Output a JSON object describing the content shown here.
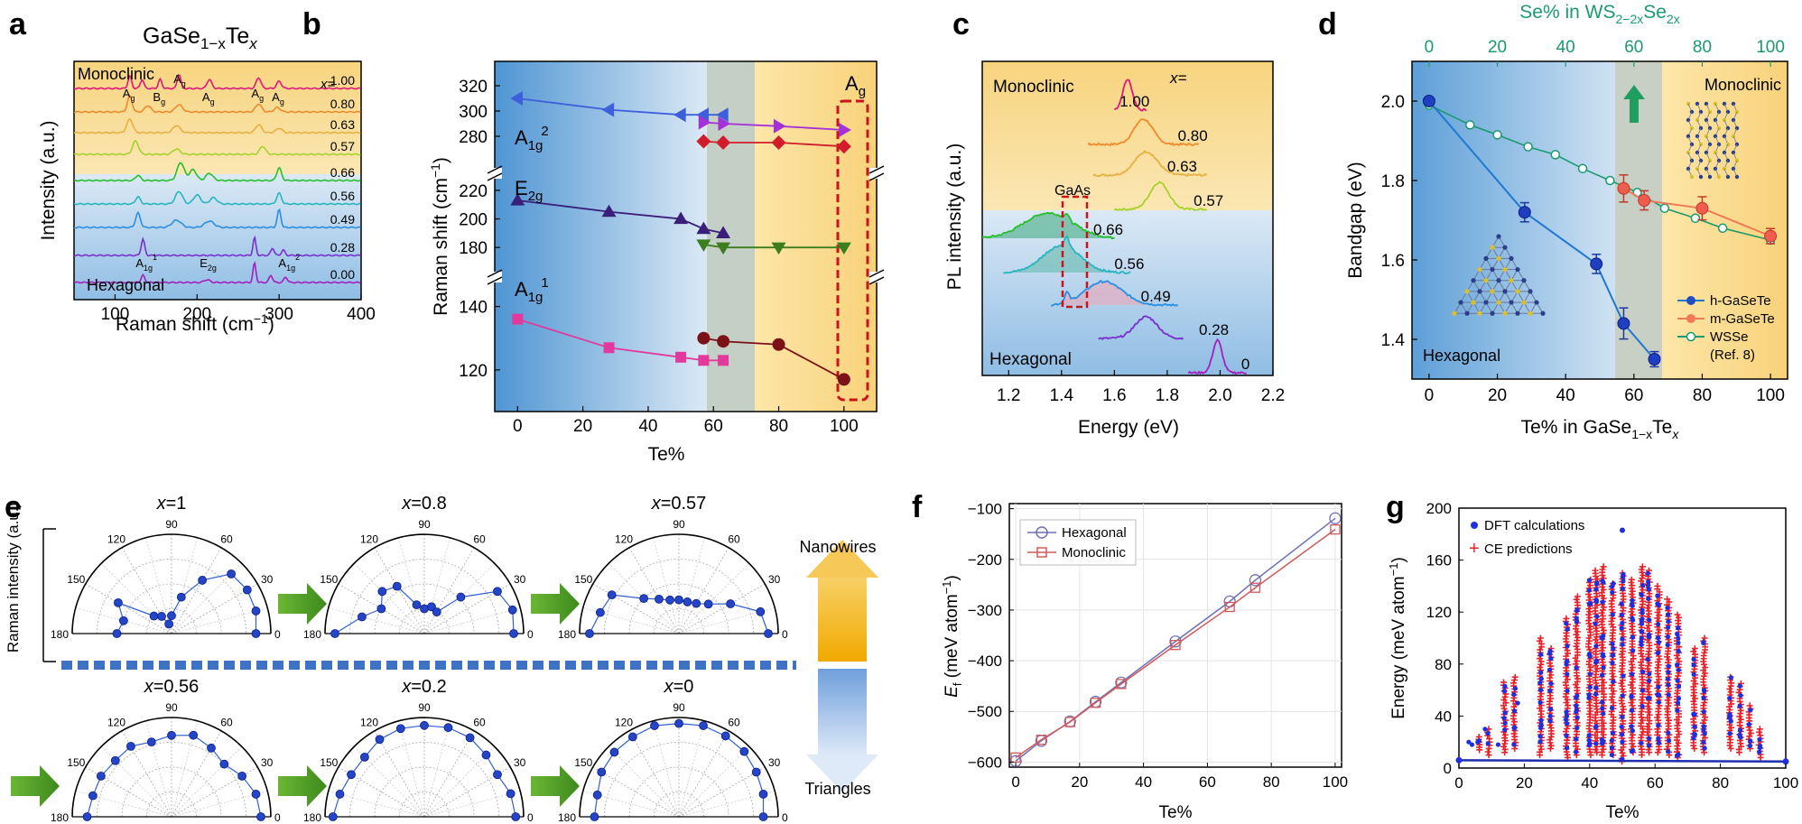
{
  "panels": {
    "a": "a",
    "b": "b",
    "c": "c",
    "d": "d",
    "e": "e",
    "f": "f",
    "g": "g"
  },
  "colors": {
    "yellow": "#fbe4a2",
    "blue": "#7fb2de",
    "grey": "#c8d0c8",
    "teal": "#1a9a6e"
  },
  "chart_data": [
    {
      "id": "a",
      "type": "line",
      "title": "GaSe1−xTex",
      "title_parts": {
        "base": "GaSe",
        "sub": "1−x",
        "mid": "Te",
        "sub2": "x"
      },
      "xlabel": "Raman shift (cm−1)",
      "ylabel": "Intensity (a.u.)",
      "xlim": [
        50,
        400
      ],
      "xticks": [
        "100",
        "200",
        "300",
        "400"
      ],
      "legend_header": "x=",
      "top_label": "Monoclinic",
      "bottom_label": "Hexagonal",
      "series": [
        {
          "name": "1.00",
          "color": "#e0177a"
        },
        {
          "name": "0.80",
          "color": "#ef8a2c"
        },
        {
          "name": "0.63",
          "color": "#e6b042"
        },
        {
          "name": "0.57",
          "color": "#a6d32b"
        },
        {
          "name": "0.66",
          "color": "#28bf2c"
        },
        {
          "name": "0.56",
          "color": "#27b5c0"
        },
        {
          "name": "0.49",
          "color": "#2a8fe0"
        },
        {
          "name": "0.28",
          "color": "#7a2fd0"
        },
        {
          "name": "0.00",
          "color": "#a41fbf"
        }
      ],
      "peak_labels": [
        {
          "base": "A",
          "sub": "g",
          "x": 118
        },
        {
          "base": "B",
          "sub": "g",
          "x": 155
        },
        {
          "base": "A",
          "sub": "g",
          "x": 180
        },
        {
          "base": "A",
          "sub": "g",
          "x": 215
        },
        {
          "base": "A",
          "sub": "g",
          "x": 275
        },
        {
          "base": "A",
          "sub": "g",
          "x": 300
        }
      ],
      "hex_peak_labels": [
        {
          "base": "A",
          "sub": "1g",
          "sup": "1",
          "x": 134
        },
        {
          "base": "E",
          "sub": "2g",
          "x": 212
        },
        {
          "base": "A",
          "sub": "1g",
          "sup": "2",
          "x": 308
        }
      ]
    },
    {
      "id": "b",
      "type": "line",
      "xlabel": "Te%",
      "ylabel": "Raman shift (cm−1)",
      "xlim": [
        -7,
        110
      ],
      "xticks": [
        "0",
        "20",
        "40",
        "60",
        "80",
        "100"
      ],
      "yticks_top": [
        "320",
        "300",
        "280"
      ],
      "yticks_mid": [
        "220",
        "200",
        "180"
      ],
      "yticks_bot": [
        "140",
        "120"
      ],
      "mode_labels": {
        "A1g2": {
          "base": "A",
          "sub": "1g",
          "sup": "2"
        },
        "E2g": {
          "base": "E",
          "sub": "2g"
        },
        "A1g1": {
          "base": "A",
          "sub": "1g",
          "sup": "1"
        },
        "Ag": {
          "base": "A",
          "sub": "g"
        }
      },
      "series": [
        {
          "name": "A1g2 hex",
          "color": "#3d5fd9",
          "marker": "tri-left",
          "x": [
            0,
            28,
            50,
            57,
            63
          ],
          "y": [
            310,
            301,
            297,
            297,
            297
          ]
        },
        {
          "name": "A1g2 mono",
          "color": "#a430d8",
          "marker": "tri-right",
          "x": [
            57,
            63,
            80,
            100
          ],
          "y": [
            291,
            290,
            288,
            285
          ]
        },
        {
          "name": "Ag mono",
          "color": "#d11d2b",
          "marker": "diamond",
          "x": [
            57,
            63,
            80,
            100
          ],
          "y": [
            276,
            275,
            275,
            272
          ]
        },
        {
          "name": "E2g hex",
          "color": "#3a1f7a",
          "marker": "tri-up",
          "x": [
            0,
            28,
            50,
            57,
            63
          ],
          "y": [
            213,
            205,
            200,
            193,
            190
          ]
        },
        {
          "name": "E2g mono",
          "color": "#3d7d1e",
          "marker": "tri-down",
          "x": [
            57,
            63,
            80,
            100
          ],
          "y": [
            182,
            180,
            180,
            180
          ]
        },
        {
          "name": "A1g1 hex",
          "color": "#e23a9c",
          "marker": "square",
          "x": [
            0,
            28,
            50,
            57,
            63
          ],
          "y": [
            136,
            127,
            124,
            123,
            123
          ]
        },
        {
          "name": "A1g1 mono",
          "color": "#7a1218",
          "marker": "circle",
          "x": [
            57,
            63,
            80,
            100
          ],
          "y": [
            130,
            129,
            128,
            117
          ]
        }
      ]
    },
    {
      "id": "c",
      "type": "line",
      "xlabel": "Energy (eV)",
      "ylabel": "PL intensity (a.u.)",
      "xlim": [
        1.1,
        2.2
      ],
      "xticks": [
        "1.2",
        "1.4",
        "1.6",
        "1.8",
        "2.0",
        "2.2"
      ],
      "top_label": "Monoclinic",
      "bottom_label": "Hexagonal",
      "legend_header": "x=",
      "gaas_label": "GaAs",
      "series": [
        {
          "name": "1.00",
          "color": "#e0177a"
        },
        {
          "name": "0.80",
          "color": "#ef8a2c"
        },
        {
          "name": "0.63",
          "color": "#e6b042"
        },
        {
          "name": "0.57",
          "color": "#a6d32b"
        },
        {
          "name": "0.66",
          "color": "#28bf2c"
        },
        {
          "name": "0.56",
          "color": "#27b5c0"
        },
        {
          "name": "0.49",
          "color": "#2a8fe0"
        },
        {
          "name": "0.28",
          "color": "#7a2fd0"
        },
        {
          "name": "0",
          "color": "#a41fbf"
        }
      ]
    },
    {
      "id": "d",
      "type": "line",
      "xlabel": "Te% in GaSe1−xTex",
      "ylabel": "Bandgap (eV)",
      "xlabel_parts": {
        "a": "Te% in GaSe",
        "sub": "1−x",
        "b": "Te",
        "sub2": "x"
      },
      "top_xlabel": "Se% in WS2−2xSe2x",
      "top_xlabel_parts": {
        "a": "Se% in WS",
        "sub": "2−2x",
        "b": "Se",
        "sub2": "2x"
      },
      "xlim": [
        -5,
        105
      ],
      "ylim": [
        1.3,
        2.1
      ],
      "xticks": [
        "0",
        "20",
        "40",
        "60",
        "80",
        "100"
      ],
      "yticks": [
        "1.4",
        "1.6",
        "1.8",
        "2.0"
      ],
      "top_xticks": [
        "0",
        "20",
        "40",
        "60",
        "80",
        "100"
      ],
      "top_label": "Monoclinic",
      "bottom_label": "Hexagonal",
      "legend": [
        "h-GaSeTe",
        "m-GaSeTe",
        "WSSe"
      ],
      "legend_note": "(Ref. 8)",
      "series": [
        {
          "name": "h-GaSeTe",
          "color": "#1f78d1",
          "x": [
            0,
            28,
            49,
            57,
            66
          ],
          "y": [
            2.0,
            1.72,
            1.59,
            1.44,
            1.35
          ],
          "err": [
            0,
            0.015,
            0.015,
            0.03,
            0.01
          ]
        },
        {
          "name": "m-GaSeTe",
          "color": "#f07a57",
          "x": [
            57,
            63,
            80,
            100
          ],
          "y": [
            1.78,
            1.75,
            1.73,
            1.66
          ],
          "err": [
            0.025,
            0.015,
            0.02,
            0.01
          ]
        },
        {
          "name": "WSSe",
          "color": "#1a9a6e",
          "x": [
            0,
            12,
            20,
            29,
            37,
            45,
            53,
            61,
            69,
            78,
            86,
            100
          ],
          "y": [
            1.99,
            1.94,
            1.915,
            1.885,
            1.865,
            1.83,
            1.8,
            1.77,
            1.73,
            1.705,
            1.68,
            1.65
          ]
        }
      ]
    },
    {
      "id": "e",
      "type": "polar",
      "side_label": "Raman intensity (a.u.)",
      "label_top": "Nanowires",
      "label_bottom": "Triangles",
      "angle_ticks": [
        "180",
        "150",
        "120",
        "90",
        "60",
        "30",
        "0"
      ],
      "plots": [
        {
          "title": "x=1",
          "title_x": "x",
          "title_val": "=1",
          "r": [
            0.55,
            0.5,
            0.62,
            0.25,
            0.2,
            0.1,
            0.18,
            0.38,
            0.62,
            0.85,
            0.88,
            0.88,
            0.85
          ]
        },
        {
          "title": "x=0.8",
          "title_x": "x",
          "title_val": "=0.8",
          "r": [
            0.9,
            0.65,
            0.5,
            0.6,
            0.55,
            0.3,
            0.25,
            0.28,
            0.25,
            0.52,
            0.85,
            0.92,
            0.9
          ]
        },
        {
          "title": "x=0.57",
          "title_x": "x",
          "title_val": "=0.57",
          "r": [
            0.9,
            0.82,
            0.78,
            0.5,
            0.4,
            0.35,
            0.34,
            0.33,
            0.35,
            0.42,
            0.6,
            0.85,
            0.9
          ]
        },
        {
          "title": "x=0.56",
          "title_x": "x",
          "title_val": "=0.56",
          "r": [
            0.85,
            0.82,
            0.82,
            0.8,
            0.82,
            0.78,
            0.82,
            0.85,
            0.8,
            0.75,
            0.82,
            0.88,
            0.9
          ]
        },
        {
          "title": "x=0.2",
          "title_x": "x",
          "title_val": "=0.2",
          "r": [
            0.92,
            0.88,
            0.85,
            0.85,
            0.9,
            0.92,
            0.92,
            0.93,
            0.92,
            0.88,
            0.85,
            0.9,
            0.92
          ]
        },
        {
          "title": "x=0",
          "title_x": "x",
          "title_val": "=0",
          "r": [
            0.85,
            0.85,
            0.9,
            0.92,
            0.93,
            0.95,
            0.94,
            0.95,
            0.94,
            0.93,
            0.9,
            0.88,
            0.85
          ]
        }
      ]
    },
    {
      "id": "f",
      "type": "line",
      "xlabel": "Te%",
      "ylabel": "Ef (meV atom−1)",
      "ylabel_parts": {
        "a": "E",
        "sub": "f",
        "b": " (meV atom",
        "sup": "−1",
        "c": ")"
      },
      "xlim": [
        -2,
        102
      ],
      "ylim": [
        -610,
        -90
      ],
      "xticks": [
        "0",
        "20",
        "40",
        "60",
        "80",
        "100"
      ],
      "yticks": [
        "−100",
        "−200",
        "−300",
        "−400",
        "−500",
        "−600"
      ],
      "series": [
        {
          "name": "Hexagonal",
          "color": "#6f6fb8",
          "marker": "circle",
          "x": [
            0,
            8,
            17,
            25,
            33,
            50,
            67,
            75,
            100
          ],
          "y": [
            -598,
            -558,
            -520,
            -481,
            -443,
            -362,
            -283,
            -241,
            -119
          ]
        },
        {
          "name": "Monoclinic",
          "color": "#d05a5a",
          "marker": "square",
          "x": [
            0,
            8,
            17,
            25,
            33,
            50,
            67,
            75,
            100
          ],
          "y": [
            -591,
            -556,
            -521,
            -483,
            -446,
            -369,
            -294,
            -256,
            -141
          ]
        }
      ]
    },
    {
      "id": "g",
      "type": "scatter",
      "xlabel": "Te%",
      "ylabel": "Energy (meV atom−1)",
      "xlim": [
        0,
        100
      ],
      "ylim": [
        0,
        200
      ],
      "xticks": [
        "0",
        "20",
        "40",
        "60",
        "80",
        "100"
      ],
      "yticks": [
        "0",
        "40",
        "80",
        "120",
        "160",
        "200"
      ],
      "legend": [
        "DFT calculations",
        "CE predictions"
      ],
      "columns": [
        {
          "x": 6,
          "min": 14,
          "max": 24
        },
        {
          "x": 9,
          "min": 10,
          "max": 30
        },
        {
          "x": 14,
          "min": 12,
          "max": 66
        },
        {
          "x": 17,
          "min": 15,
          "max": 70
        },
        {
          "x": 25,
          "min": 10,
          "max": 100
        },
        {
          "x": 28,
          "min": 15,
          "max": 92
        },
        {
          "x": 33,
          "min": 8,
          "max": 115
        },
        {
          "x": 36,
          "min": 10,
          "max": 132
        },
        {
          "x": 40,
          "min": 10,
          "max": 145
        },
        {
          "x": 42,
          "min": 12,
          "max": 152
        },
        {
          "x": 44,
          "min": 10,
          "max": 155
        },
        {
          "x": 47,
          "min": 10,
          "max": 142
        },
        {
          "x": 50,
          "min": 5,
          "max": 150
        },
        {
          "x": 53,
          "min": 12,
          "max": 145
        },
        {
          "x": 56,
          "min": 10,
          "max": 155
        },
        {
          "x": 58,
          "min": 12,
          "max": 152
        },
        {
          "x": 61,
          "min": 12,
          "max": 140
        },
        {
          "x": 64,
          "min": 10,
          "max": 130
        },
        {
          "x": 67,
          "min": 8,
          "max": 118
        },
        {
          "x": 72,
          "min": 15,
          "max": 92
        },
        {
          "x": 75,
          "min": 12,
          "max": 100
        },
        {
          "x": 83,
          "min": 15,
          "max": 70
        },
        {
          "x": 86,
          "min": 12,
          "max": 65
        },
        {
          "x": 89,
          "min": 15,
          "max": 48
        },
        {
          "x": 92,
          "min": 8,
          "max": 30
        }
      ],
      "outlier": {
        "x": 50,
        "y": 183
      },
      "hull": {
        "x": [
          0,
          100
        ],
        "y": [
          6,
          5
        ]
      }
    }
  ]
}
